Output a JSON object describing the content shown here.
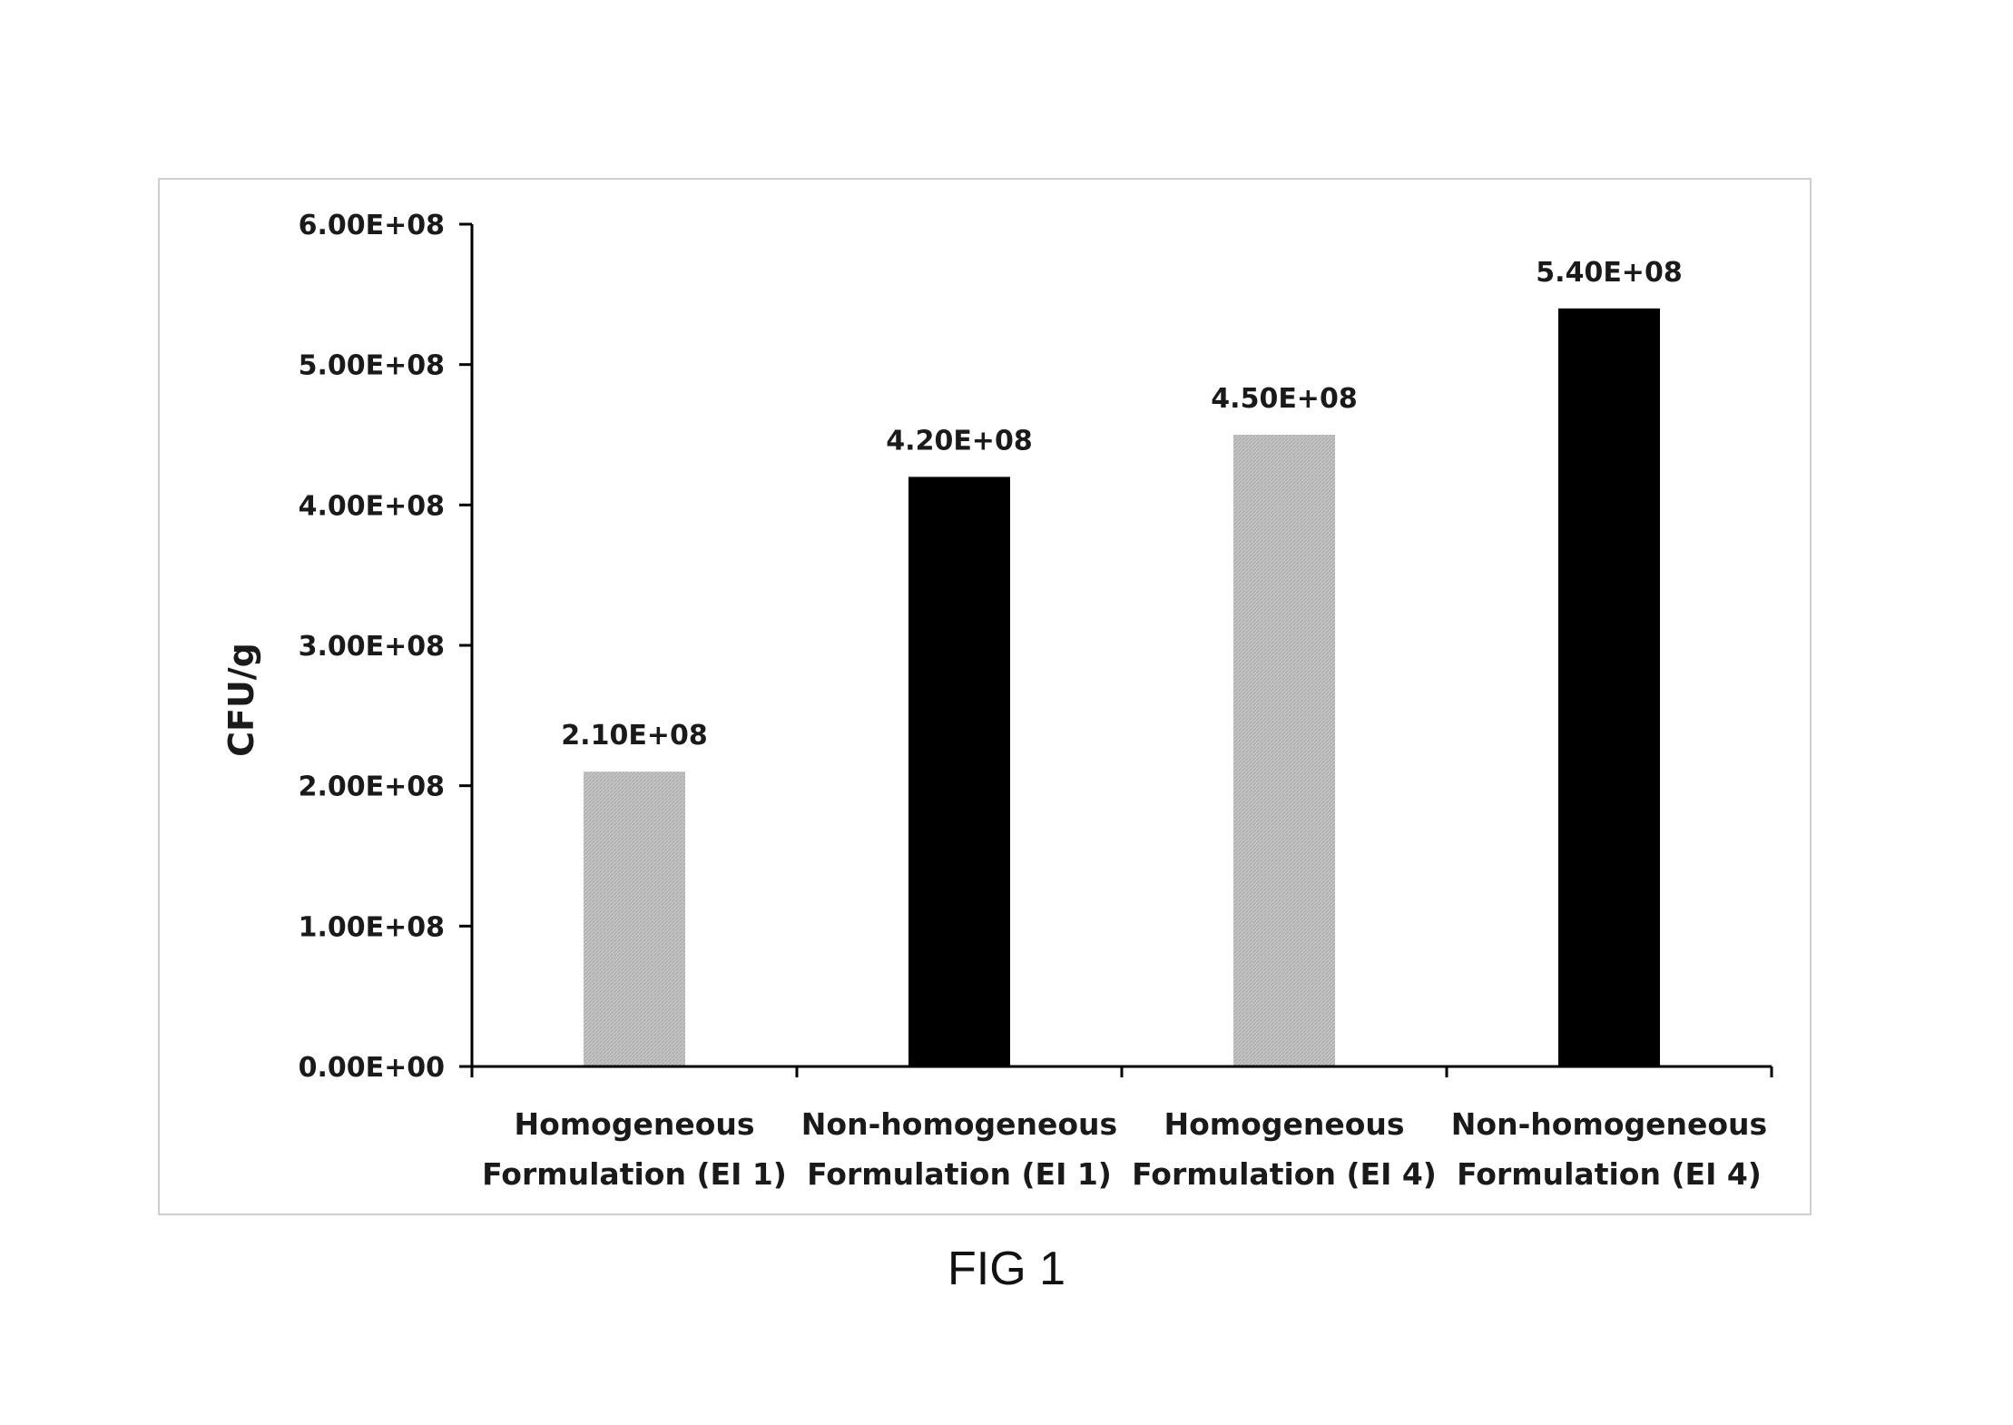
{
  "figure": {
    "caption": "FIG 1"
  },
  "chart_data": {
    "type": "bar",
    "title": "",
    "xlabel": "",
    "ylabel": "CFU/g",
    "ylim": [
      0,
      600000000
    ],
    "yticks": [
      {
        "value": 0,
        "label": "0.00E+00"
      },
      {
        "value": 100000000,
        "label": "1.00E+08"
      },
      {
        "value": 200000000,
        "label": "2.00E+08"
      },
      {
        "value": 300000000,
        "label": "3.00E+08"
      },
      {
        "value": 400000000,
        "label": "4.00E+08"
      },
      {
        "value": 500000000,
        "label": "5.00E+08"
      },
      {
        "value": 600000000,
        "label": "6.00E+08"
      }
    ],
    "grid": false,
    "legend": "none",
    "categories": [
      [
        "Homogeneous",
        "Formulation (EI 1)"
      ],
      [
        "Non-homogeneous",
        "Formulation (EI 1)"
      ],
      [
        "Homogeneous",
        "Formulation (EI 4)"
      ],
      [
        "Non-homogeneous",
        "Formulation (EI 4)"
      ]
    ],
    "values": [
      210000000,
      420000000,
      450000000,
      540000000
    ],
    "data_labels": [
      "2.10E+08",
      "4.20E+08",
      "4.50E+08",
      "5.40E+08"
    ],
    "bar_colors": [
      "#bdbdbd",
      "#000000",
      "#bdbdbd",
      "#000000"
    ]
  }
}
